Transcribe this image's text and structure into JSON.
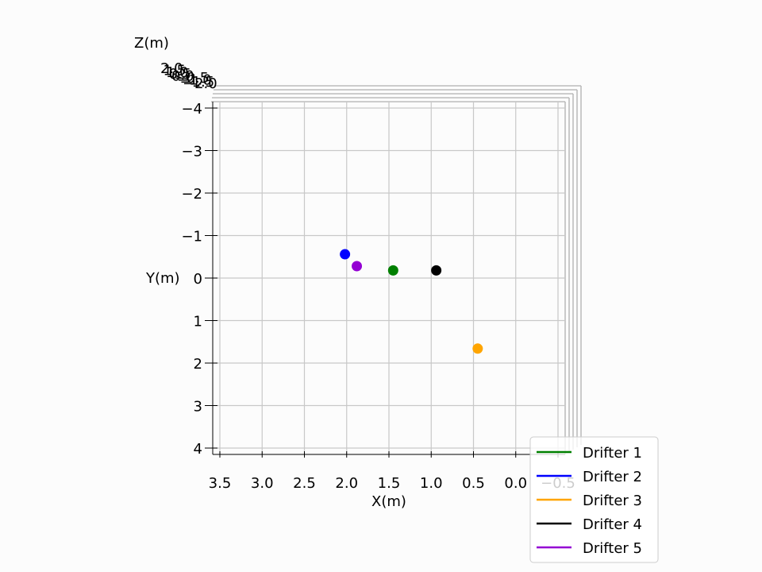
{
  "chart_data": {
    "type": "scatter",
    "projection": "3d",
    "title": "",
    "xlabel": "X(m)",
    "ylabel": "Y(m)",
    "zlabel": "Z(m)",
    "xlim": [
      3.6,
      -0.9
    ],
    "ylim": [
      -4.2,
      4.2
    ],
    "x_ticks": [
      "3.5",
      "3.0",
      "2.5",
      "2.0",
      "1.5",
      "1.0",
      "0.5",
      "0.0",
      "−0.5"
    ],
    "x_tick_values": [
      3.5,
      3.0,
      2.5,
      2.0,
      1.5,
      1.0,
      0.5,
      0.0,
      -0.5
    ],
    "y_ticks": [
      "−4",
      "−3",
      "−2",
      "−1",
      "0",
      "1",
      "2",
      "3",
      "4"
    ],
    "y_tick_values": [
      -4,
      -3,
      -2,
      -1,
      0,
      1,
      2,
      3,
      4
    ],
    "z_ticks_overlapping": [
      "2.0",
      "1.5",
      "1.0",
      "0.5",
      "0.0",
      "−0.5",
      "−1.0",
      "−1.5",
      "−2.0"
    ],
    "grid": true,
    "legend_position": "bottom-right",
    "series": [
      {
        "name": "Drifter 1",
        "color": "#008000",
        "points": [
          {
            "x": 1.45,
            "y": -0.18
          }
        ]
      },
      {
        "name": "Drifter 2",
        "color": "#0000ff",
        "points": [
          {
            "x": 2.02,
            "y": -0.56
          }
        ]
      },
      {
        "name": "Drifter 3",
        "color": "#ffa500",
        "points": [
          {
            "x": 0.45,
            "y": 1.66
          }
        ]
      },
      {
        "name": "Drifter 4",
        "color": "#000000",
        "points": [
          {
            "x": 0.94,
            "y": -0.18
          }
        ]
      },
      {
        "name": "Drifter 5",
        "color": "#9400d3",
        "points": [
          {
            "x": 1.88,
            "y": -0.28
          }
        ]
      }
    ]
  }
}
